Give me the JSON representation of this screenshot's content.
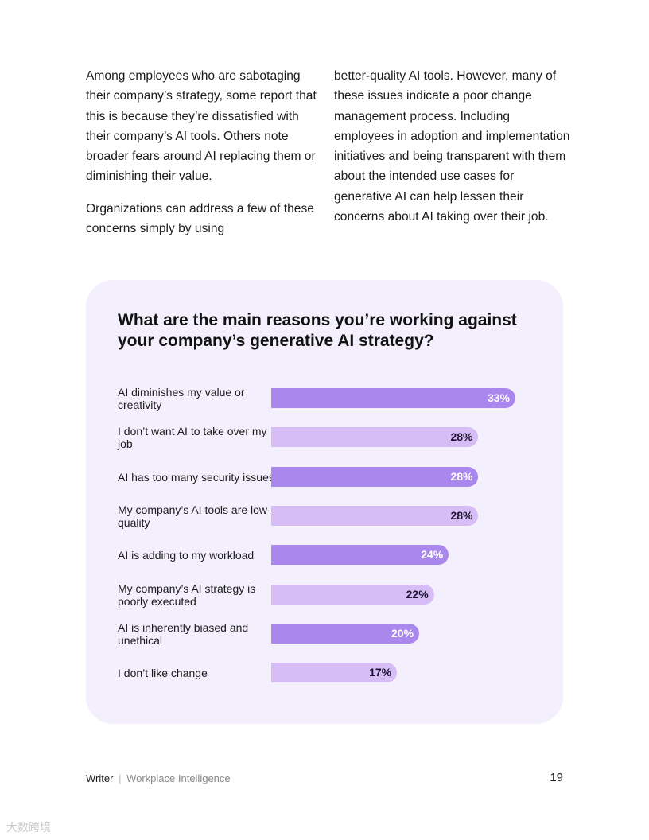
{
  "body_text": {
    "left_paragraphs": [
      "Among employees who are sabotaging their company’s strategy, some report that this is because they’re dissatisfied with their company’s AI tools. Others note broader fears around AI replacing them or diminishing their value.",
      "Organizations can address a few of these concerns simply by using"
    ],
    "right_paragraphs": [
      "better-quality AI tools. However, many of these issues indicate a poor change management process. Including employees in adoption and implementation initiatives and being transparent with them about the intended use cases for generative AI can help lessen their concerns about AI taking over their job."
    ]
  },
  "chart_data": {
    "type": "bar",
    "orientation": "horizontal",
    "title": "What are the main reasons you’re working against your company’s generative AI strategy?",
    "xlabel": "",
    "ylabel": "",
    "value_suffix": "%",
    "categories": [
      "AI diminishes my value or creativity",
      "I don’t want AI to take over my job",
      "AI has too many security issues",
      "My company’s AI tools are low-quality",
      "AI is adding to my workload",
      "My company’s AI strategy is poorly executed",
      "AI is inherently biased and unethical",
      "I don’t like change"
    ],
    "values": [
      33,
      28,
      28,
      28,
      24,
      22,
      20,
      17
    ],
    "value_labels": [
      "33%",
      "28%",
      "28%",
      "28%",
      "24%",
      "22%",
      "20%",
      "17%"
    ],
    "xlim": [
      0,
      33
    ],
    "grid": false,
    "legend": "none",
    "colors": {
      "bar_dark": "#a987ec",
      "bar_light": "#d6bdf5",
      "card_background": "#f4effd"
    }
  },
  "footer": {
    "brand": "Writer",
    "separator": "|",
    "publication": "Workplace Intelligence",
    "page_number": "19"
  },
  "watermark": "大数跨境"
}
